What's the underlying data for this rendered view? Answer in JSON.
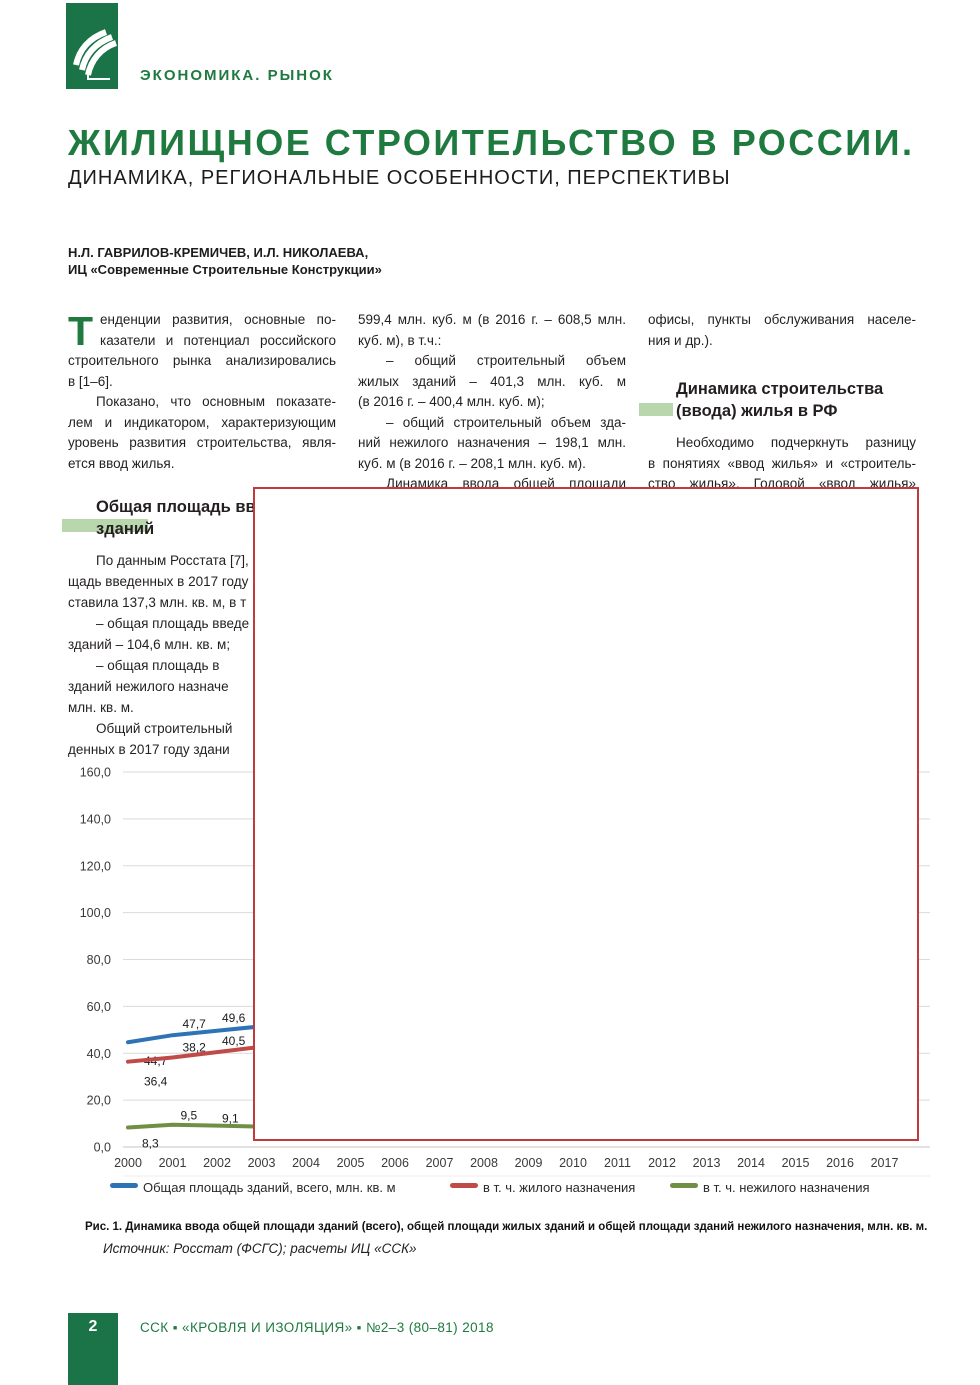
{
  "colors": {
    "brand_green": "#1a7447",
    "title_green": "#1f7a40",
    "highlight_green": "#b9d7ad",
    "overlay_border_red": "#c23b3c",
    "body_text": "#231f20"
  },
  "header": {
    "section_label": "ЭКОНОМИКА. РЫНОК"
  },
  "article": {
    "title": "ЖИЛИЩНОЕ СТРОИТЕЛЬСТВО В РОССИИ.",
    "subtitle": "ДИНАМИКА, РЕГИОНАЛЬНЫЕ ОСОБЕННОСТИ, ПЕРСПЕКТИВЫ",
    "authors": "Н.Л. ГАВРИЛОВ-КРЕМИЧЕВ, И.Л. НИКОЛАЕВА,",
    "affiliation": "ИЦ «Современные Строительные Конструкции»"
  },
  "col1": {
    "dropcap": "Т",
    "p1": [
      "енденции развития, основные по-",
      "казатели и потенциал российского",
      "строительного рынка анализировались",
      "в [1–6]."
    ],
    "p2": [
      "Показано, что основным показате-",
      "лем и индикатором, характеризующим",
      "уровень развития строительства, явля-",
      "ется ввод жилья."
    ],
    "heading1": "Общая площадь вве",
    "heading2": "зданий",
    "lower": [
      "По данным Росстата [7],",
      "щадь введенных в 2017 году",
      "ставила 137,3 млн. кв. м, в т",
      "– общая площадь введе",
      "зданий – 104,6 млн. кв. м;",
      "– общая площадь в",
      "зданий нежилого назначе",
      "млн. кв. м.",
      "Общий строительный",
      "денных в 2017 году здани"
    ]
  },
  "col2": {
    "lines": [
      "599,4 млн. куб. м (в 2016 г. – 608,5 млн.",
      "куб. м), в т.ч.:",
      "– общий строительный объем",
      "жилых зданий – 401,3 млн. куб. м",
      "(в 2016 г. – 400,4 млн. куб. м);",
      "– общий строительный объем зда-",
      "ний нежилого назначения – 198,1 млн.",
      "куб. м (в 2016 г. – 208,1 млн. куб. м).",
      "Динамика ввода общей площади"
    ]
  },
  "col3": {
    "top": [
      "офисы, пункты обслуживания населе-",
      "ния и др.)."
    ],
    "heading1": "Динамика строительства",
    "heading2": "(ввода) жилья в РФ",
    "body": [
      "Необходимо подчеркнуть разницу",
      "в понятиях «ввод жилья» и «строитель-",
      "ство жилья». Годовой «ввод жилья»"
    ]
  },
  "chart_data": {
    "type": "line",
    "categories": [
      "2000",
      "2001",
      "2002",
      "2003",
      "2004",
      "2005",
      "2006",
      "2007",
      "2008",
      "2009",
      "2010",
      "2011",
      "2012",
      "2013",
      "2014",
      "2015",
      "2016",
      "2017"
    ],
    "series": [
      {
        "name": "Общая площадь зданий, всего, млн. кв. м",
        "color": "#2e74b5",
        "values": [
          44.7,
          47.7,
          49.6,
          null,
          null,
          null,
          null,
          null,
          null,
          null,
          null,
          null,
          null,
          null,
          null,
          null,
          null,
          null
        ]
      },
      {
        "name": "в т. ч. жилого назначения",
        "color": "#bf4a47",
        "values": [
          36.4,
          38.2,
          40.5,
          null,
          null,
          null,
          null,
          null,
          null,
          null,
          null,
          null,
          null,
          null,
          null,
          null,
          null,
          null
        ]
      },
      {
        "name": "в т. ч. нежилого назначения",
        "color": "#6f9044",
        "values": [
          8.3,
          9.5,
          9.1,
          null,
          null,
          null,
          null,
          null,
          null,
          null,
          null,
          null,
          null,
          null,
          null,
          null,
          null,
          null
        ]
      }
    ],
    "title": "",
    "xlabel": "",
    "ylabel": "",
    "ylim": [
      0,
      160
    ],
    "ytick_step": 20,
    "grid": true,
    "legend_position": "bottom",
    "values_hidden_by_overlay_from": "2003"
  },
  "figure": {
    "caption": "Рис. 1. Динамика ввода общей площади зданий (всего), общей площади жилых зданий и общей площади зданий нежилого назначения, млн. кв. м.",
    "source": "Источник: Росстат (ФСГС); расчеты ИЦ «ССК»"
  },
  "footer": {
    "page_number": "2",
    "journal_line": "ССК ▪ «КРОВЛЯ И ИЗОЛЯЦИЯ» ▪ №2–3 (80–81) 2018"
  }
}
